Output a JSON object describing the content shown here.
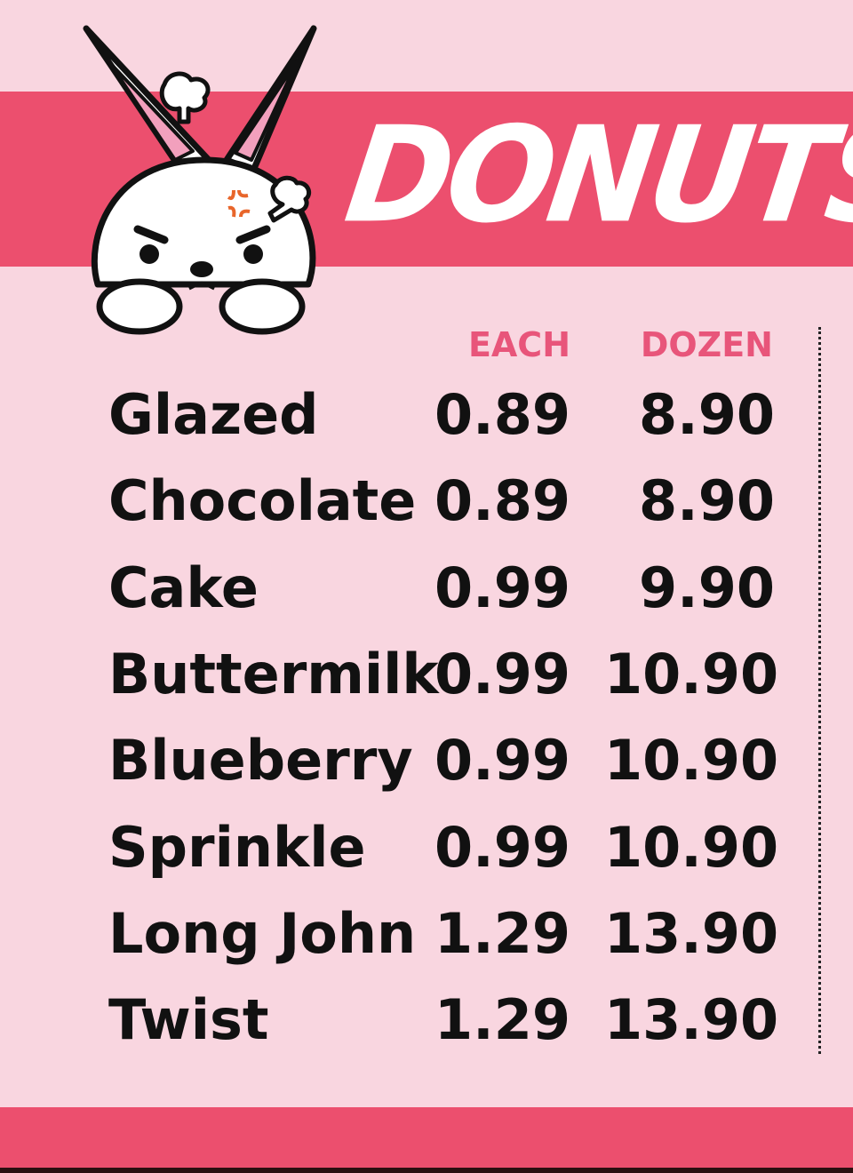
{
  "title": "DONUTS",
  "colors": {
    "background": "#f9d6e0",
    "accent": "#ec4f6e",
    "header_text": "#e8557a",
    "text": "#111111"
  },
  "mascot": "angry-bunny-icon",
  "columns": {
    "each": "EACH",
    "dozen": "DOZEN"
  },
  "items": [
    {
      "name": "Glazed",
      "each": "0.89",
      "dozen": "8.90"
    },
    {
      "name": "Chocolate",
      "each": "0.89",
      "dozen": "8.90"
    },
    {
      "name": "Cake",
      "each": "0.99",
      "dozen": "9.90"
    },
    {
      "name": "Buttermilk",
      "each": "0.99",
      "dozen": "10.90"
    },
    {
      "name": "Blueberry",
      "each": "0.99",
      "dozen": "10.90"
    },
    {
      "name": "Sprinkle",
      "each": "0.99",
      "dozen": "10.90"
    },
    {
      "name": "Long John",
      "each": "1.29",
      "dozen": "13.90"
    },
    {
      "name": "Twist",
      "each": "1.29",
      "dozen": "13.90"
    }
  ]
}
